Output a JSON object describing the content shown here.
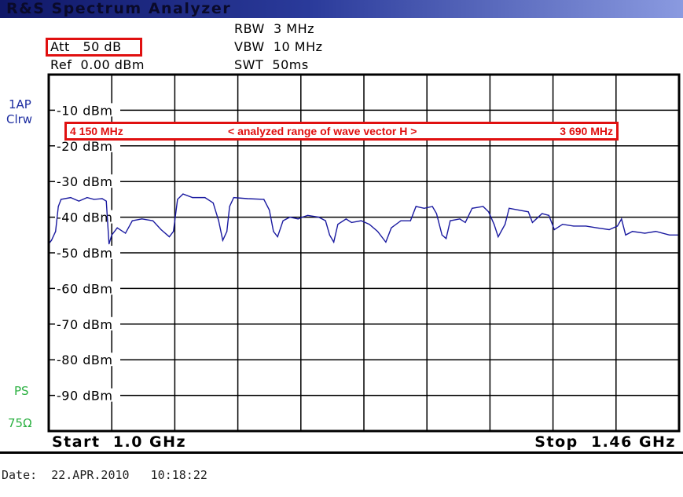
{
  "window": {
    "title": "R&S Spectrum Analyzer"
  },
  "settings": {
    "att": "Att   50 dB",
    "ref": "Ref  0.00 dBm",
    "rbw": "RBW  3 MHz",
    "vbw": "VBW  10 MHz",
    "swt": "SWT  50ms"
  },
  "side_labels": {
    "trace_mode": "1AP",
    "trace_clear": "Clrw",
    "ps": "PS",
    "impedance": "75Ω"
  },
  "annotation": {
    "left": "4 150 MHz",
    "center": "<  analyzed range of wave vector H >",
    "right": "3 690 MHz",
    "color": "#e01010"
  },
  "footer": {
    "start": "Start  1.0 GHz",
    "stop": "Stop  1.46 GHz",
    "date": "Date:  22.APR.2010   10:18:22"
  },
  "chart_data": {
    "type": "line",
    "xlim": [
      1.0,
      1.46
    ],
    "ylim": [
      -100,
      0
    ],
    "xunit": "GHz",
    "grid": true,
    "ytick_labels": [
      "-10 dBm",
      "-20 dBm",
      "-30 dBm",
      "-40 dBm",
      "-50 dBm",
      "-60 dBm",
      "-70 dBm",
      "-80 dBm",
      "-90 dBm"
    ],
    "ytick_values": [
      -10,
      -20,
      -30,
      -40,
      -50,
      -60,
      -70,
      -80,
      -90
    ],
    "trace_color": "#1a1aa0",
    "series": [
      {
        "x": [
          1.0,
          1.002,
          1.005,
          1.007,
          1.009,
          1.016,
          1.022,
          1.028,
          1.033,
          1.039,
          1.042,
          1.044,
          1.046,
          1.05,
          1.056,
          1.061,
          1.068,
          1.076,
          1.082,
          1.088,
          1.091,
          1.094,
          1.098,
          1.105,
          1.114,
          1.12,
          1.124,
          1.127,
          1.13,
          1.132,
          1.135,
          1.145,
          1.157,
          1.161,
          1.164,
          1.167,
          1.171,
          1.176,
          1.182,
          1.185,
          1.189,
          1.197,
          1.202,
          1.205,
          1.208,
          1.211,
          1.217,
          1.221,
          1.228,
          1.234,
          1.24,
          1.246,
          1.25,
          1.257,
          1.264,
          1.268,
          1.274,
          1.28,
          1.283,
          1.287,
          1.29,
          1.293,
          1.3,
          1.304,
          1.309,
          1.317,
          1.321,
          1.325,
          1.328,
          1.333,
          1.336,
          1.343,
          1.35,
          1.353,
          1.36,
          1.365,
          1.369,
          1.375,
          1.383,
          1.392,
          1.4,
          1.409,
          1.415,
          1.418,
          1.421,
          1.426,
          1.435,
          1.443,
          1.453,
          1.46
        ],
        "y": [
          -47.5,
          -46.5,
          -44,
          -37,
          -35,
          -34.5,
          -35.5,
          -34.5,
          -35,
          -34.8,
          -35.5,
          -47.5,
          -45,
          -43,
          -44.5,
          -41,
          -40.5,
          -41,
          -43.5,
          -45.5,
          -44,
          -35,
          -33.5,
          -34.5,
          -34.5,
          -36,
          -41,
          -46.5,
          -44,
          -37,
          -34.5,
          -34.8,
          -35,
          -38,
          -44,
          -45.5,
          -41,
          -40,
          -40.5,
          -40,
          -39.5,
          -40,
          -41,
          -45,
          -47,
          -42,
          -40.5,
          -41.5,
          -41,
          -42,
          -44,
          -47,
          -43,
          -41,
          -41,
          -37,
          -37.5,
          -37,
          -39,
          -45,
          -46,
          -41,
          -40.5,
          -41.5,
          -37.5,
          -37,
          -38.5,
          -42,
          -45.5,
          -42,
          -37.5,
          -38,
          -38.5,
          -41.5,
          -39,
          -39.5,
          -43.5,
          -42,
          -42.5,
          -42.5,
          -43,
          -43.5,
          -42.5,
          -40.5,
          -45,
          -44,
          -44.5,
          -44,
          -45,
          -45
        ]
      }
    ]
  }
}
